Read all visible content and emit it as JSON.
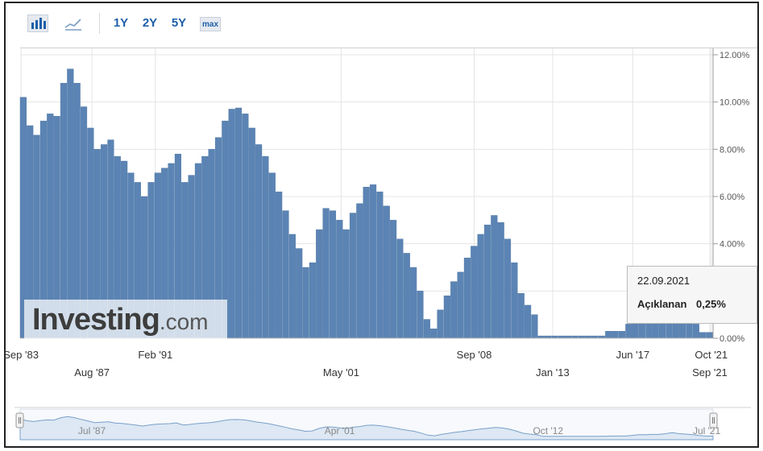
{
  "toolbar": {
    "bar_icon": "bar-chart-icon",
    "line_icon": "line-chart-icon",
    "range_1y": "1Y",
    "range_2y": "2Y",
    "range_5y": "5Y",
    "range_max": "max"
  },
  "watermark": {
    "brand": "Investing",
    "suffix": ".com"
  },
  "tooltip": {
    "date": "22.09.2021",
    "label": "Açıklanan",
    "value": "0,25%"
  },
  "colors": {
    "bar": "#5b84b4",
    "bar_stroke": "#4a73a3",
    "grid": "#e4e4e4",
    "navigator_fill": "#dde8f4",
    "navigator_line": "#7aa0c8"
  },
  "chart_data": {
    "type": "bar",
    "title": "",
    "xlabel": "",
    "ylabel": "",
    "ylim": [
      0,
      12
    ],
    "grid": true,
    "y_axis_position": "right",
    "y_ticks": [
      {
        "value": 0,
        "label": "0.00%"
      },
      {
        "value": 2,
        "label": "2.00%"
      },
      {
        "value": 4,
        "label": "4.00%"
      },
      {
        "value": 6,
        "label": "6.00%"
      },
      {
        "value": 8,
        "label": "8.00%"
      },
      {
        "value": 10,
        "label": "10.00%"
      },
      {
        "value": 12,
        "label": "12.00%"
      }
    ],
    "x_range": [
      1983.62,
      2021.85
    ],
    "x_ticks_top": [
      {
        "year": 1983.67,
        "label": "Sep '83"
      },
      {
        "year": 1991.08,
        "label": "Feb '91"
      },
      {
        "year": 2008.67,
        "label": "Sep '08"
      },
      {
        "year": 2017.42,
        "label": "Jun '17"
      },
      {
        "year": 2021.75,
        "label": "Oct '21"
      }
    ],
    "x_ticks_bottom": [
      {
        "year": 1987.58,
        "label": "Aug '87"
      },
      {
        "year": 2001.33,
        "label": "May '01"
      },
      {
        "year": 2013.0,
        "label": "Jan '13"
      },
      {
        "year": 2021.67,
        "label": "Sep '21"
      }
    ],
    "series": [
      {
        "points": [
          [
            1983.6,
            10.2
          ],
          [
            1984.0,
            9.0
          ],
          [
            1984.4,
            8.6
          ],
          [
            1984.8,
            9.2
          ],
          [
            1985.2,
            9.5
          ],
          [
            1985.6,
            9.4
          ],
          [
            1986.0,
            10.8
          ],
          [
            1986.4,
            11.4
          ],
          [
            1986.8,
            10.8
          ],
          [
            1987.2,
            9.8
          ],
          [
            1987.6,
            8.9
          ],
          [
            1988.0,
            8.0
          ],
          [
            1988.4,
            8.2
          ],
          [
            1988.8,
            8.4
          ],
          [
            1989.2,
            7.7
          ],
          [
            1989.6,
            7.5
          ],
          [
            1990.0,
            7.0
          ],
          [
            1990.4,
            6.6
          ],
          [
            1990.8,
            6.0
          ],
          [
            1991.2,
            6.6
          ],
          [
            1991.6,
            7.0
          ],
          [
            1991.8,
            7.2
          ],
          [
            1992.0,
            7.4
          ],
          [
            1992.4,
            7.8
          ],
          [
            1992.8,
            6.6
          ],
          [
            1993.2,
            6.9
          ],
          [
            1993.6,
            7.4
          ],
          [
            1994.0,
            7.7
          ],
          [
            1994.4,
            8.0
          ],
          [
            1994.8,
            8.5
          ],
          [
            1995.2,
            9.2
          ],
          [
            1995.6,
            9.7
          ],
          [
            1995.8,
            9.75
          ],
          [
            1996.0,
            9.5
          ],
          [
            1996.4,
            8.9
          ],
          [
            1996.8,
            8.2
          ],
          [
            1997.2,
            7.7
          ],
          [
            1997.6,
            7.0
          ],
          [
            1998.0,
            6.2
          ],
          [
            1998.4,
            5.4
          ],
          [
            1998.8,
            4.4
          ],
          [
            1999.2,
            3.8
          ],
          [
            1999.6,
            3.0
          ],
          [
            2000.0,
            3.2
          ],
          [
            2000.4,
            4.6
          ],
          [
            2000.8,
            5.5
          ],
          [
            2001.2,
            5.4
          ],
          [
            2001.6,
            5.0
          ],
          [
            2002.0,
            4.6
          ],
          [
            2002.4,
            5.3
          ],
          [
            2002.8,
            5.7
          ],
          [
            2003.2,
            6.4
          ],
          [
            2003.4,
            6.5
          ],
          [
            2003.6,
            6.2
          ],
          [
            2004.0,
            5.6
          ],
          [
            2004.4,
            5.0
          ],
          [
            2004.8,
            4.2
          ],
          [
            2005.2,
            3.6
          ],
          [
            2005.6,
            3.0
          ],
          [
            2006.0,
            2.0
          ],
          [
            2006.4,
            0.8
          ],
          [
            2006.8,
            0.4
          ],
          [
            2007.2,
            1.2
          ],
          [
            2007.6,
            1.8
          ],
          [
            2008.0,
            2.4
          ],
          [
            2008.4,
            2.8
          ],
          [
            2008.8,
            3.4
          ],
          [
            2009.2,
            3.9
          ],
          [
            2009.6,
            4.4
          ],
          [
            2010.0,
            4.8
          ],
          [
            2010.2,
            5.2
          ],
          [
            2010.4,
            4.9
          ],
          [
            2010.8,
            4.2
          ],
          [
            2011.2,
            3.2
          ],
          [
            2011.6,
            1.9
          ],
          [
            2012.0,
            1.4
          ],
          [
            2012.4,
            1.0
          ],
          [
            2012.8,
            0.1
          ],
          [
            2013.2,
            0.1
          ],
          [
            2014.0,
            0.1
          ],
          [
            2015.0,
            0.1
          ],
          [
            2016.0,
            0.1
          ],
          [
            2017.0,
            0.1
          ],
          [
            2018.0,
            0.1
          ],
          [
            2019.0,
            0.1
          ],
          [
            2020.0,
            0.1
          ],
          [
            2020.8,
            0.1
          ],
          [
            2021.0,
            0.3
          ],
          [
            2021.2,
            0.3
          ],
          [
            2021.6,
            0.3
          ],
          [
            2022.0,
            0.6
          ],
          [
            2022.4,
            1.0
          ],
          [
            2022.8,
            1.0
          ],
          [
            2023.2,
            1.2
          ],
          [
            2023.6,
            1.2
          ],
          [
            2024.0,
            1.6
          ],
          [
            2024.4,
            2.2
          ],
          [
            2024.8,
            1.6
          ],
          [
            2025.2,
            1.4
          ],
          [
            2025.6,
            1.0
          ],
          [
            2026.0,
            0.6
          ],
          [
            2026.4,
            0.25
          ],
          [
            2026.8,
            0.25
          ]
        ]
      }
    ],
    "navigator": {
      "labels": [
        {
          "year": 1987.58,
          "label": "Jul '87"
        },
        {
          "year": 2001.25,
          "label": "Apr '01"
        },
        {
          "year": 2012.75,
          "label": "Oct '12"
        },
        {
          "year": 2021.5,
          "label": "Jul '21"
        }
      ]
    }
  }
}
